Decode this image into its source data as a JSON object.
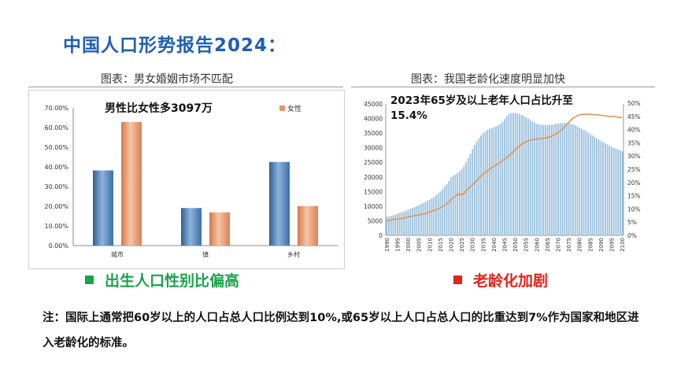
{
  "title": "中国人口形势报告2024：",
  "left_caption": "图表：男女婚姻市场不匹配",
  "right_caption": "图表：我国老龄化速度明显加快",
  "left_bottom_label": "出生人口性别比偏高",
  "right_bottom_label": "老龄化加剧",
  "note_text": "注：国际上通常把60岁以上的人口占总人口比例达到10%,或65岁以上人口占总人口的比重达到7%作为国家和地区进入老龄化的标准。",
  "colors": {
    "title": "#1f5fb0",
    "male": "#4f81bd",
    "female": "#e8956a",
    "left_label": "#1aa34a",
    "right_label": "#e2231a",
    "pop_bar": "#9dc3de",
    "ratio_line": "#e0935a"
  },
  "chart_data": [
    {
      "type": "bar",
      "annotation": "男性比女性多3097万",
      "categories": [
        "城市",
        "镇",
        "乡村"
      ],
      "series": [
        {
          "name": "",
          "values": [
            38.2,
            19.1,
            42.5
          ]
        },
        {
          "name": "女性",
          "values": [
            62.8,
            16.9,
            20.1
          ]
        }
      ],
      "ylim": [
        0,
        70
      ],
      "yticks": [
        "0.00%",
        "10.00%",
        "20.00%",
        "30.00%",
        "40.00%",
        "50.00%",
        "60.00%",
        "70.00%"
      ],
      "ytick_values": [
        0,
        10,
        20,
        30,
        40,
        50,
        60,
        70
      ],
      "legend_position": "top-right"
    },
    {
      "type": "bar_line",
      "annotation": "2023年65岁及以上老年人口占比升至15.4%",
      "x": [
        1990,
        1991,
        1992,
        1993,
        1994,
        1995,
        1996,
        1997,
        1998,
        1999,
        2000,
        2001,
        2002,
        2003,
        2004,
        2005,
        2006,
        2007,
        2008,
        2009,
        2010,
        2011,
        2012,
        2013,
        2014,
        2015,
        2016,
        2017,
        2018,
        2019,
        2020,
        2021,
        2022,
        2023,
        2024,
        2025,
        2026,
        2027,
        2028,
        2029,
        2030,
        2031,
        2032,
        2033,
        2034,
        2035,
        2036,
        2037,
        2038,
        2039,
        2040,
        2041,
        2042,
        2043,
        2044,
        2045,
        2046,
        2047,
        2048,
        2049,
        2050,
        2051,
        2052,
        2053,
        2054,
        2055,
        2056,
        2057,
        2058,
        2059,
        2060,
        2061,
        2062,
        2063,
        2064,
        2065,
        2066,
        2067,
        2068,
        2069,
        2070,
        2071,
        2072,
        2073,
        2074,
        2075,
        2076,
        2077,
        2078,
        2079,
        2080,
        2081,
        2082,
        2083,
        2084,
        2085,
        2086,
        2087,
        2088,
        2089,
        2090,
        2091,
        2092,
        2093,
        2094,
        2095,
        2096,
        2097,
        2098,
        2099,
        2100
      ],
      "xticks": [
        "1990",
        "1995",
        "2000",
        "2005",
        "2010",
        "2015",
        "2020",
        "2025",
        "2030",
        "2035",
        "2040",
        "2045",
        "2050",
        "2055",
        "2060",
        "2065",
        "2070",
        "2075",
        "2080",
        "2085",
        "2090",
        "2095",
        "2100"
      ],
      "bar_values": [
        6300,
        6500,
        6700,
        6900,
        7100,
        7400,
        7700,
        7900,
        8200,
        8500,
        8800,
        9100,
        9400,
        9700,
        10000,
        10300,
        10700,
        11100,
        11500,
        11900,
        12200,
        12700,
        13200,
        13800,
        14400,
        15000,
        15800,
        16700,
        17600,
        18600,
        19800,
        20500,
        20800,
        21300,
        21800,
        22600,
        23700,
        25000,
        26500,
        28000,
        29500,
        31000,
        32200,
        33300,
        34200,
        35000,
        35600,
        36100,
        36500,
        36800,
        37000,
        37300,
        37700,
        38200,
        38900,
        39800,
        40800,
        41500,
        41900,
        42000,
        41900,
        41700,
        41500,
        41200,
        40900,
        40500,
        40000,
        39500,
        39000,
        38600,
        38200,
        38000,
        37900,
        37800,
        37800,
        37800,
        37800,
        37900,
        38000,
        38200,
        38300,
        38400,
        38500,
        38500,
        38500,
        38400,
        38200,
        38000,
        37700,
        37300,
        36900,
        36500,
        36100,
        35700,
        35200,
        34700,
        34200,
        33700,
        33200,
        32800,
        32300,
        31900,
        31500,
        31100,
        30700,
        30300,
        30000,
        29700,
        29400,
        29100,
        28800
      ],
      "line_values": [
        5.6,
        5.7,
        5.8,
        6.0,
        6.1,
        6.2,
        6.3,
        6.4,
        6.6,
        6.8,
        7.0,
        7.1,
        7.3,
        7.5,
        7.6,
        7.7,
        7.9,
        8.1,
        8.3,
        8.5,
        8.9,
        9.1,
        9.4,
        9.7,
        10.1,
        10.5,
        10.8,
        11.4,
        11.9,
        12.6,
        13.5,
        14.2,
        14.9,
        15.4,
        15.6,
        15.4,
        15.9,
        16.8,
        17.7,
        18.4,
        19.0,
        19.9,
        20.7,
        21.6,
        22.4,
        23.1,
        23.8,
        24.4,
        25.0,
        25.6,
        26.1,
        26.6,
        27.1,
        27.6,
        28.2,
        28.8,
        29.4,
        30.1,
        30.8,
        31.6,
        32.5,
        33.2,
        33.9,
        34.5,
        35.0,
        35.4,
        35.7,
        36.0,
        36.2,
        36.3,
        36.4,
        36.5,
        36.6,
        36.7,
        36.8,
        37.0,
        37.2,
        37.5,
        37.9,
        38.3,
        38.9,
        39.5,
        40.2,
        41.0,
        41.9,
        42.8,
        43.6,
        44.3,
        44.8,
        45.3,
        45.6,
        45.7,
        45.8,
        45.8,
        45.8,
        45.7,
        45.7,
        45.6,
        45.6,
        45.5,
        45.4,
        45.3,
        45.2,
        45.1,
        45.0,
        45.0,
        44.9,
        44.8,
        44.7,
        44.6,
        44.5
      ],
      "ylim_left": [
        0,
        45000
      ],
      "yticks_left": [
        "0",
        "5000",
        "10000",
        "15000",
        "20000",
        "25000",
        "30000",
        "35000",
        "40000",
        "45000"
      ],
      "ylim_right": [
        0,
        50
      ],
      "yticks_right": [
        "0%",
        "5%",
        "10%",
        "15%",
        "20%",
        "25%",
        "30%",
        "35%",
        "40%",
        "45%",
        "50%"
      ]
    }
  ]
}
